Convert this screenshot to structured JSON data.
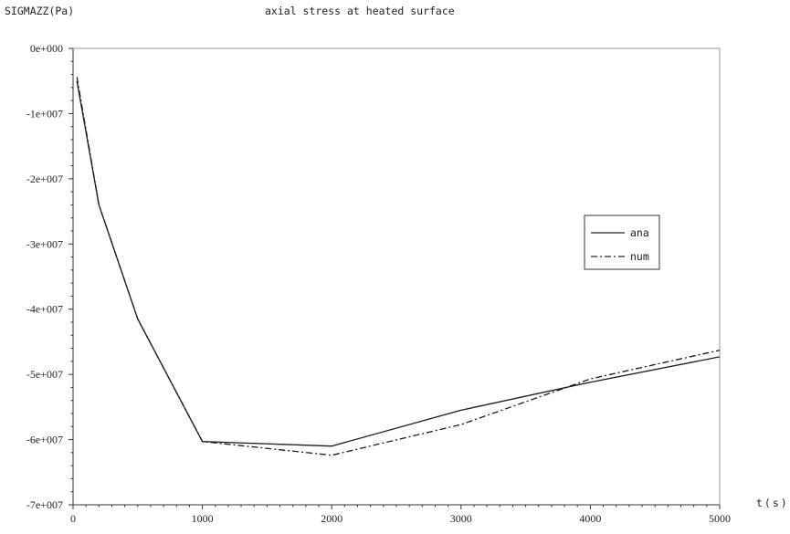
{
  "chart_data": {
    "type": "line",
    "title": "axial stress at heated surface",
    "ylabel": "SIGMAZZ(Pa)",
    "xlabel": "t(s)",
    "xlim": [
      0,
      5000
    ],
    "ylim": [
      -70000000,
      0
    ],
    "x_ticks": [
      "0",
      "1000",
      "2000",
      "3000",
      "4000",
      "5000"
    ],
    "y_ticks": [
      "0e+000",
      "-1e+007",
      "-2e+007",
      "-3e+007",
      "-4e+007",
      "-5e+007",
      "-6e+007",
      "-7e+007"
    ],
    "grid": false,
    "legend_position": "right",
    "series": [
      {
        "name": "ana",
        "style": "solid",
        "x": [
          30,
          200,
          500,
          1000,
          2000,
          3000,
          4000,
          5000
        ],
        "y": [
          -5000000,
          -24000000,
          -41500000,
          -60300000,
          -61000000,
          -55500000,
          -51200000,
          -47300000
        ]
      },
      {
        "name": "num",
        "style": "dashdot",
        "x": [
          30,
          200,
          500,
          1000,
          2000,
          3000,
          4000,
          5000
        ],
        "y": [
          -4400000,
          -24000000,
          -41500000,
          -60300000,
          -62400000,
          -57700000,
          -50700000,
          -46300000
        ]
      }
    ]
  }
}
